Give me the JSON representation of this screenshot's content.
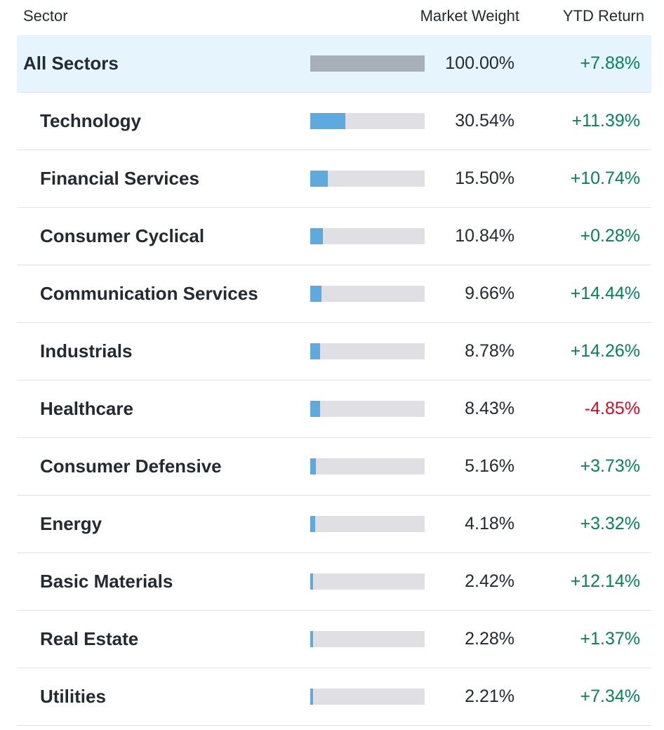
{
  "header": {
    "sector": "Sector",
    "market_weight": "Market Weight",
    "ytd_return": "YTD Return"
  },
  "colors": {
    "positive": "#008556",
    "negative": "#d60a22",
    "bar_fill": "#5eaadf",
    "bar_fill_all": "#a9afb8",
    "bar_track": "#e0e0e4",
    "highlight_bg": "#e6f4fd"
  },
  "rows": [
    {
      "name": "All Sectors",
      "weight": "100.00%",
      "weight_value": 100.0,
      "ytd": "+7.88%",
      "sign": "pos",
      "highlight": true
    },
    {
      "name": "Technology",
      "weight": "30.54%",
      "weight_value": 30.54,
      "ytd": "+11.39%",
      "sign": "pos"
    },
    {
      "name": "Financial Services",
      "weight": "15.50%",
      "weight_value": 15.5,
      "ytd": "+10.74%",
      "sign": "pos"
    },
    {
      "name": "Consumer Cyclical",
      "weight": "10.84%",
      "weight_value": 10.84,
      "ytd": "+0.28%",
      "sign": "pos"
    },
    {
      "name": "Communication Services",
      "weight": "9.66%",
      "weight_value": 9.66,
      "ytd": "+14.44%",
      "sign": "pos"
    },
    {
      "name": "Industrials",
      "weight": "8.78%",
      "weight_value": 8.78,
      "ytd": "+14.26%",
      "sign": "pos"
    },
    {
      "name": "Healthcare",
      "weight": "8.43%",
      "weight_value": 8.43,
      "ytd": "-4.85%",
      "sign": "neg"
    },
    {
      "name": "Consumer Defensive",
      "weight": "5.16%",
      "weight_value": 5.16,
      "ytd": "+3.73%",
      "sign": "pos"
    },
    {
      "name": "Energy",
      "weight": "4.18%",
      "weight_value": 4.18,
      "ytd": "+3.32%",
      "sign": "pos"
    },
    {
      "name": "Basic Materials",
      "weight": "2.42%",
      "weight_value": 2.42,
      "ytd": "+12.14%",
      "sign": "pos"
    },
    {
      "name": "Real Estate",
      "weight": "2.28%",
      "weight_value": 2.28,
      "ytd": "+1.37%",
      "sign": "pos"
    },
    {
      "name": "Utilities",
      "weight": "2.21%",
      "weight_value": 2.21,
      "ytd": "+7.34%",
      "sign": "pos"
    }
  ]
}
